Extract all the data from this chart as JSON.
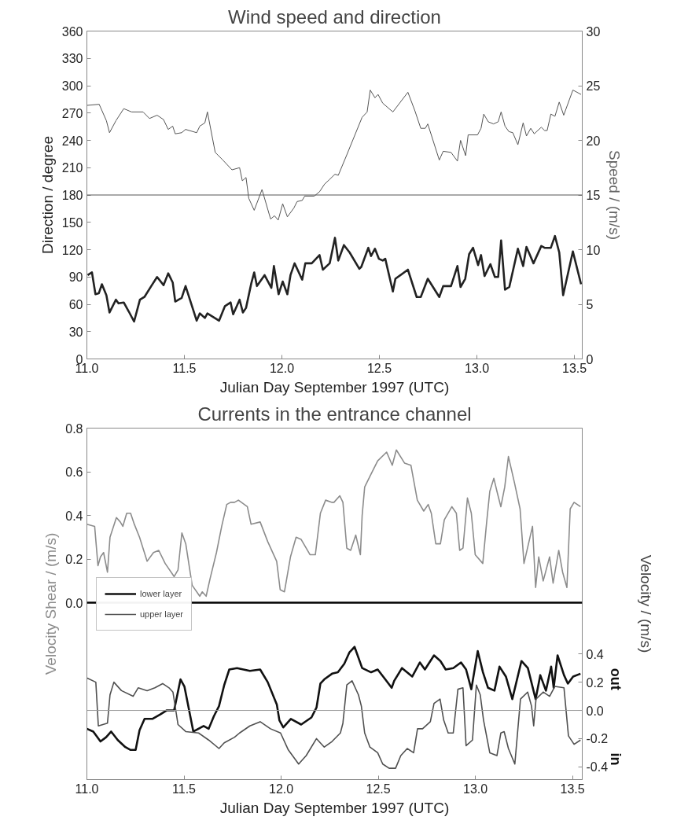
{
  "chart_data": [
    {
      "type": "line",
      "title": "Wind speed and direction",
      "xlabel": "Julian Day September 1997 (UTC)",
      "ylabel": "Direction / degree",
      "y2label": "Speed / (m/s)",
      "xlim": [
        11.0,
        13.54
      ],
      "xticks": [
        {
          "value": 11,
          "label": "11.0"
        },
        {
          "value": 11.5,
          "label": "11.5"
        },
        {
          "value": 12,
          "label": "12.0"
        },
        {
          "value": 12.5,
          "label": "12.5"
        },
        {
          "value": 13,
          "label": "13.0"
        },
        {
          "value": 13.5,
          "label": "13.5"
        }
      ],
      "ylim": [
        0,
        360
      ],
      "yticks": [
        0,
        30,
        60,
        90,
        120,
        150,
        180,
        210,
        240,
        270,
        300,
        330,
        360
      ],
      "y2lim": [
        0,
        30
      ],
      "y2ticks": [
        0,
        5,
        10,
        15,
        20,
        25,
        30
      ],
      "ref_lines": [
        {
          "axis": "y",
          "value": 180,
          "color": "#555555"
        }
      ],
      "series": [
        {
          "color": "#555555",
          "axis": "y2",
          "x": [
            11.0,
            11.063,
            11.1,
            11.116,
            11.149,
            11.189,
            11.229,
            11.288,
            11.321,
            11.36,
            11.393,
            11.417,
            11.44,
            11.453,
            11.486,
            11.506,
            11.563,
            11.579,
            11.605,
            11.618,
            11.658,
            11.697,
            11.744,
            11.783,
            11.797,
            11.816,
            11.83,
            11.858,
            11.898,
            11.942,
            11.962,
            11.981,
            12.004,
            12.028,
            12.061,
            12.078,
            12.104,
            12.117,
            12.166,
            12.193,
            12.219,
            12.243,
            12.272,
            12.289,
            12.331,
            12.411,
            12.437,
            12.453,
            12.477,
            12.493,
            12.517,
            12.569,
            12.646,
            12.682,
            12.712,
            12.735,
            12.748,
            12.807,
            12.827,
            12.867,
            12.9,
            12.916,
            12.942,
            12.955,
            13.003,
            13.021,
            13.035,
            13.058,
            13.085,
            13.109,
            13.124,
            13.144,
            13.164,
            13.184,
            13.21,
            13.237,
            13.254,
            13.276,
            13.294,
            13.33,
            13.347,
            13.36,
            13.379,
            13.4,
            13.422,
            13.445,
            13.492,
            13.534
          ],
          "values": [
            23.2,
            23.3,
            21.8,
            20.7,
            21.8,
            22.9,
            22.6,
            22.6,
            22.0,
            22.3,
            21.9,
            21.0,
            21.3,
            20.6,
            20.7,
            21.0,
            20.7,
            21.3,
            21.6,
            22.6,
            18.9,
            18.2,
            17.3,
            17.5,
            16.3,
            16.6,
            14.7,
            13.6,
            15.5,
            12.8,
            13.1,
            12.7,
            14.2,
            13.0,
            13.8,
            14.4,
            14.5,
            14.9,
            14.9,
            15.3,
            16.0,
            16.4,
            16.9,
            16.8,
            18.6,
            22.1,
            22.6,
            24.6,
            23.9,
            24.2,
            23.4,
            22.6,
            24.4,
            22.7,
            21.1,
            21.1,
            21.5,
            18.2,
            19.0,
            18.9,
            18.1,
            20.0,
            18.6,
            20.5,
            20.5,
            21.1,
            22.4,
            21.7,
            21.5,
            21.7,
            22.6,
            21.3,
            20.8,
            20.7,
            19.6,
            21.6,
            20.4,
            21.1,
            20.6,
            21.2,
            20.9,
            20.9,
            22.4,
            22.2,
            23.5,
            22.3,
            24.6,
            24.2
          ]
        },
        {
          "color": "#222222",
          "x": [
            11.004,
            11.026,
            11.044,
            11.061,
            11.077,
            11.1,
            11.116,
            11.149,
            11.162,
            11.189,
            11.215,
            11.242,
            11.272,
            11.295,
            11.33,
            11.36,
            11.393,
            11.417,
            11.44,
            11.453,
            11.486,
            11.506,
            11.563,
            11.579,
            11.605,
            11.618,
            11.678,
            11.708,
            11.737,
            11.75,
            11.783,
            11.8,
            11.816,
            11.843,
            11.858,
            11.872,
            11.911,
            11.946,
            11.959,
            11.983,
            12.004,
            12.028,
            12.044,
            12.065,
            12.104,
            12.12,
            12.153,
            12.193,
            12.21,
            12.245,
            12.272,
            12.289,
            12.318,
            12.347,
            12.397,
            12.407,
            12.443,
            12.457,
            12.477,
            12.497,
            12.517,
            12.53,
            12.569,
            12.582,
            12.646,
            12.691,
            12.712,
            12.748,
            12.807,
            12.827,
            12.867,
            12.9,
            12.916,
            12.94,
            12.96,
            12.98,
            13.006,
            13.021,
            13.039,
            13.069,
            13.092,
            13.109,
            13.124,
            13.144,
            13.166,
            13.21,
            13.237,
            13.254,
            13.29,
            13.33,
            13.347,
            13.379,
            13.4,
            13.422,
            13.442,
            13.492,
            13.534
          ],
          "values": [
            92,
            95,
            71,
            72,
            82,
            70,
            51,
            65,
            61,
            62,
            52,
            41,
            65,
            68,
            80,
            90,
            81,
            94,
            84,
            63,
            67,
            80,
            42,
            50,
            45,
            50,
            42,
            58,
            62,
            49,
            65,
            51,
            56,
            83,
            95,
            80,
            92,
            78,
            102,
            71,
            85,
            71,
            92,
            105,
            87,
            105,
            105,
            114,
            98,
            105,
            133,
            108,
            125,
            117,
            99,
            101,
            122,
            113,
            121,
            110,
            108,
            110,
            74,
            88,
            98,
            68,
            68,
            88,
            68,
            80,
            80,
            102,
            79,
            88,
            115,
            122,
            103,
            114,
            91,
            104,
            90,
            90,
            130,
            76,
            79,
            121,
            102,
            123,
            105,
            124,
            122,
            122,
            135,
            117,
            70,
            118,
            82
          ]
        }
      ]
    },
    {
      "type": "line",
      "title": "Currents in the entrance channel",
      "xlabel": "Julian Day September 1997 (UTC)",
      "ylabel": "Velocity Shear / (m/s)",
      "y2label": "Velocity / (m/s)",
      "xlim": [
        11.0,
        13.55
      ],
      "xticks": [
        {
          "value": 11,
          "label": "11.0"
        },
        {
          "value": 11.5,
          "label": "11.5"
        },
        {
          "value": 12,
          "label": "12.0"
        },
        {
          "value": 12.5,
          "label": "12.5"
        },
        {
          "value": 13,
          "label": "13.0"
        },
        {
          "value": 13.5,
          "label": "13.5"
        }
      ],
      "ylim": [
        -0.81,
        0.8
      ],
      "yticks": [
        {
          "value": 0,
          "label": "0.0"
        },
        {
          "value": 0.2,
          "label": "0.2"
        },
        {
          "value": 0.4,
          "label": "0.4"
        },
        {
          "value": 0.6,
          "label": "0.6"
        },
        {
          "value": 0.8,
          "label": "0.8"
        }
      ],
      "y2lim": [
        -0.49,
        2.0
      ],
      "y2ticks": [
        {
          "value": -0.4,
          "label": "-0.4"
        },
        {
          "value": -0.2,
          "label": "-0.2"
        },
        {
          "value": 0,
          "label": "0.0"
        },
        {
          "value": 0.2,
          "label": "0.2"
        },
        {
          "value": 0.4,
          "label": "0.4"
        }
      ],
      "ref_lines": [
        {
          "axis": "y",
          "value": 0,
          "color": "#000000"
        },
        {
          "axis": "y2",
          "value": 0,
          "color": "#999999"
        }
      ],
      "legend": "left",
      "annotations": [
        "out",
        "in"
      ],
      "series": [
        {
          "color": "#8c8c8c",
          "x": [
            11.0,
            11.04,
            11.057,
            11.07,
            11.086,
            11.106,
            11.119,
            11.152,
            11.172,
            11.185,
            11.205,
            11.225,
            11.244,
            11.271,
            11.31,
            11.343,
            11.37,
            11.403,
            11.449,
            11.469,
            11.489,
            11.509,
            11.542,
            11.581,
            11.594,
            11.614,
            11.634,
            11.667,
            11.694,
            11.72,
            11.74,
            11.76,
            11.78,
            11.826,
            11.845,
            11.892,
            11.931,
            11.977,
            11.995,
            12.017,
            12.048,
            12.077,
            12.103,
            12.149,
            12.176,
            12.202,
            12.229,
            12.262,
            12.272,
            12.302,
            12.318,
            12.338,
            12.358,
            12.384,
            12.408,
            12.417,
            12.43,
            12.463,
            12.497,
            12.543,
            12.572,
            12.593,
            12.635,
            12.668,
            12.701,
            12.734,
            12.757,
            12.773,
            12.796,
            12.82,
            12.84,
            12.879,
            12.902,
            12.919,
            12.936,
            12.959,
            12.979,
            12.999,
            13.038,
            13.058,
            13.074,
            13.095,
            13.111,
            13.131,
            13.151,
            13.17,
            13.201,
            13.23,
            13.25,
            13.294,
            13.31,
            13.326,
            13.349,
            13.382,
            13.4,
            13.429,
            13.449,
            13.471,
            13.488,
            13.508,
            13.541
          ],
          "values": [
            0.36,
            0.35,
            0.17,
            0.21,
            0.23,
            0.14,
            0.3,
            0.39,
            0.37,
            0.35,
            0.41,
            0.41,
            0.36,
            0.3,
            0.19,
            0.23,
            0.24,
            0.18,
            0.12,
            0.15,
            0.32,
            0.27,
            0.08,
            0.03,
            0.05,
            0.03,
            0.11,
            0.23,
            0.35,
            0.45,
            0.46,
            0.46,
            0.47,
            0.44,
            0.36,
            0.37,
            0.28,
            0.19,
            0.06,
            0.05,
            0.21,
            0.3,
            0.29,
            0.22,
            0.22,
            0.41,
            0.47,
            0.46,
            0.46,
            0.49,
            0.46,
            0.25,
            0.24,
            0.31,
            0.22,
            0.4,
            0.53,
            0.59,
            0.65,
            0.69,
            0.63,
            0.7,
            0.64,
            0.63,
            0.47,
            0.42,
            0.45,
            0.41,
            0.27,
            0.27,
            0.38,
            0.44,
            0.41,
            0.24,
            0.25,
            0.48,
            0.41,
            0.22,
            0.18,
            0.37,
            0.51,
            0.57,
            0.51,
            0.44,
            0.53,
            0.67,
            0.55,
            0.43,
            0.18,
            0.35,
            0.07,
            0.21,
            0.1,
            0.21,
            0.09,
            0.24,
            0.14,
            0.07,
            0.43,
            0.46,
            0.44
          ]
        },
        {
          "name": "lower layer",
          "color": "#111111",
          "axis": "y2",
          "x": [
            11.0,
            11.033,
            11.07,
            11.099,
            11.125,
            11.159,
            11.198,
            11.225,
            11.251,
            11.271,
            11.297,
            11.337,
            11.376,
            11.41,
            11.449,
            11.482,
            11.502,
            11.548,
            11.601,
            11.627,
            11.654,
            11.68,
            11.707,
            11.733,
            11.773,
            11.839,
            11.892,
            11.931,
            11.978,
            11.991,
            12.011,
            12.05,
            12.103,
            12.156,
            12.182,
            12.202,
            12.222,
            12.262,
            12.292,
            12.325,
            12.351,
            12.378,
            12.417,
            12.463,
            12.497,
            12.536,
            12.569,
            12.582,
            12.622,
            12.648,
            12.675,
            12.714,
            12.74,
            12.787,
            12.82,
            12.847,
            12.886,
            12.926,
            12.952,
            12.979,
            13.012,
            13.039,
            13.065,
            13.098,
            13.124,
            13.157,
            13.19,
            13.237,
            13.27,
            13.31,
            13.334,
            13.363,
            13.39,
            13.403,
            13.423,
            13.456,
            13.476,
            13.503,
            13.541
          ],
          "values": [
            -0.13,
            -0.15,
            -0.22,
            -0.19,
            -0.15,
            -0.21,
            -0.26,
            -0.28,
            -0.28,
            -0.14,
            -0.06,
            -0.06,
            -0.03,
            0.0,
            0.0,
            0.22,
            0.17,
            -0.15,
            -0.11,
            -0.13,
            -0.04,
            0.03,
            0.18,
            0.29,
            0.3,
            0.28,
            0.29,
            0.2,
            0.04,
            -0.07,
            -0.12,
            -0.06,
            -0.1,
            -0.05,
            0.02,
            0.19,
            0.22,
            0.26,
            0.27,
            0.33,
            0.41,
            0.45,
            0.3,
            0.27,
            0.29,
            0.22,
            0.16,
            0.21,
            0.3,
            0.27,
            0.24,
            0.34,
            0.29,
            0.39,
            0.35,
            0.29,
            0.3,
            0.34,
            0.29,
            0.15,
            0.42,
            0.27,
            0.16,
            0.14,
            0.31,
            0.24,
            0.08,
            0.35,
            0.3,
            0.08,
            0.25,
            0.14,
            0.31,
            0.16,
            0.39,
            0.25,
            0.19,
            0.24,
            0.26
          ]
        },
        {
          "name": "upper layer",
          "color": "#505050",
          "axis": "y2",
          "x": [
            11.0,
            11.046,
            11.059,
            11.106,
            11.119,
            11.139,
            11.178,
            11.238,
            11.264,
            11.31,
            11.35,
            11.39,
            11.423,
            11.443,
            11.469,
            11.509,
            11.575,
            11.627,
            11.68,
            11.707,
            11.76,
            11.786,
            11.839,
            11.892,
            11.945,
            11.997,
            12.037,
            12.09,
            12.129,
            12.182,
            12.222,
            12.262,
            12.305,
            12.318,
            12.338,
            12.365,
            12.398,
            12.413,
            12.43,
            12.457,
            12.497,
            12.523,
            12.556,
            12.589,
            12.616,
            12.649,
            12.682,
            12.702,
            12.728,
            12.768,
            12.787,
            12.818,
            12.837,
            12.86,
            12.886,
            12.91,
            12.936,
            12.952,
            12.985,
            13.005,
            13.025,
            13.042,
            13.074,
            13.111,
            13.131,
            13.148,
            13.17,
            13.203,
            13.232,
            13.269,
            13.289,
            13.3,
            13.312,
            13.349,
            13.382,
            13.409,
            13.456,
            13.479,
            13.508,
            13.541
          ],
          "values": [
            0.23,
            0.2,
            -0.11,
            -0.09,
            0.11,
            0.2,
            0.14,
            0.1,
            0.16,
            0.14,
            0.16,
            0.19,
            0.16,
            0.13,
            -0.1,
            -0.15,
            -0.16,
            -0.21,
            -0.27,
            -0.23,
            -0.19,
            -0.16,
            -0.11,
            -0.08,
            -0.13,
            -0.16,
            -0.28,
            -0.38,
            -0.32,
            -0.2,
            -0.26,
            -0.22,
            -0.16,
            -0.09,
            0.18,
            0.21,
            0.11,
            0.03,
            -0.16,
            -0.26,
            -0.3,
            -0.38,
            -0.41,
            -0.41,
            -0.32,
            -0.27,
            -0.3,
            -0.13,
            -0.13,
            -0.08,
            0.05,
            0.08,
            -0.07,
            -0.16,
            -0.16,
            0.15,
            0.16,
            -0.25,
            -0.21,
            0.18,
            0.11,
            -0.07,
            -0.3,
            -0.32,
            -0.16,
            -0.15,
            -0.27,
            -0.38,
            0.08,
            0.13,
            0.03,
            -0.11,
            0.08,
            0.13,
            0.1,
            0.17,
            0.16,
            -0.18,
            -0.24,
            -0.21
          ]
        }
      ]
    }
  ]
}
